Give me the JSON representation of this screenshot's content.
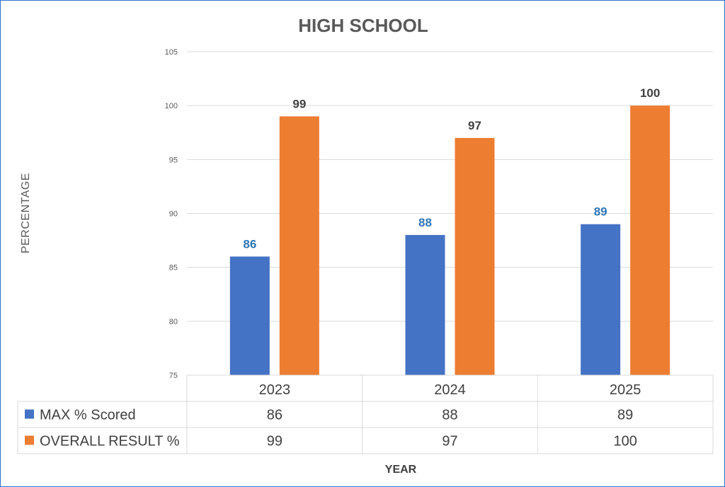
{
  "chart_data": {
    "type": "bar",
    "title": "HIGH SCHOOL",
    "xlabel": "YEAR",
    "ylabel": "PERCENTAGE",
    "categories": [
      "2023",
      "2024",
      "2025"
    ],
    "ylim": [
      75,
      105
    ],
    "yticks": [
      75,
      80,
      85,
      90,
      95,
      100,
      105
    ],
    "grid": true,
    "legend": "data-table",
    "series": [
      {
        "name": "MAX % Scored",
        "values": [
          86,
          88,
          89
        ],
        "color": "#4472c4",
        "label_color": "#2e75b6"
      },
      {
        "name": "OVERALL RESULT %",
        "values": [
          99,
          97,
          100
        ],
        "color": "#ed7d31",
        "label_color": "#404040"
      }
    ]
  }
}
